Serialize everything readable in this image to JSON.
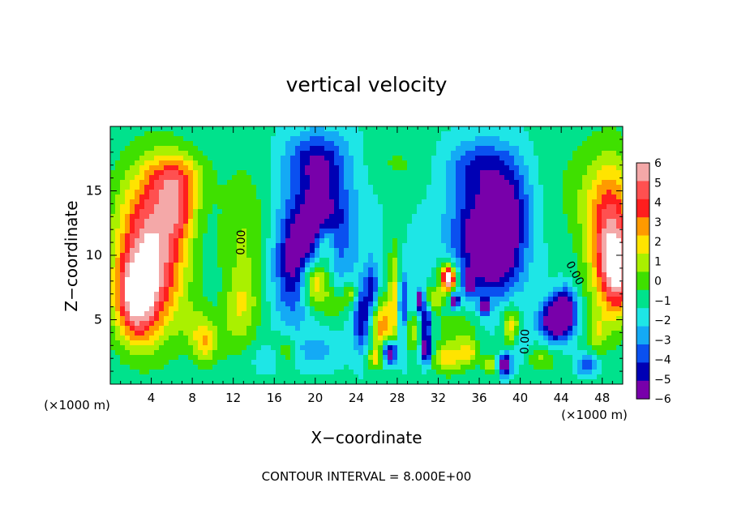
{
  "chart_data": {
    "type": "heatmap",
    "title": "vertical velocity",
    "xlabel": "X−coordinate",
    "ylabel": "Z−coordinate",
    "x_unit_left": "(×1000 m)",
    "x_unit_right": "(×1000 m)",
    "footer": "CONTOUR INTERVAL = 8.000E+00",
    "xlim": [
      0,
      50
    ],
    "ylim": [
      0,
      20
    ],
    "x_ticks": [
      4,
      8,
      12,
      16,
      20,
      24,
      28,
      32,
      36,
      40,
      44,
      48
    ],
    "x_tick_labels": [
      "4",
      "8",
      "12",
      "16",
      "20",
      "24",
      "28",
      "32",
      "36",
      "40",
      "44",
      "48"
    ],
    "y_ticks": [
      5,
      10,
      15
    ],
    "y_tick_labels": [
      "5",
      "10",
      "15"
    ],
    "colorbar": {
      "values": [
        6,
        5,
        4,
        3,
        2,
        1,
        0,
        -1,
        -2,
        -3,
        -4,
        -5,
        -6
      ],
      "labels": [
        "6",
        "5",
        "4",
        "3",
        "2",
        "1",
        "0",
        "−1",
        "−2",
        "−3",
        "−4",
        "−5",
        "−6"
      ],
      "colors": [
        "#f4a8a8",
        "#ff5050",
        "#ff1e1e",
        "#ff9a00",
        "#ffe400",
        "#aaf000",
        "#3fe000",
        "#00e28c",
        "#1ee6e6",
        "#14aaf5",
        "#0a50f0",
        "#0000b4",
        "#7800aa"
      ],
      "above_max_color": "#ffffff",
      "below_min_color": "#7800aa"
    },
    "contour_labels": [
      {
        "text": "0.00",
        "x": 12.8,
        "z": 11.0,
        "rotate": -88
      },
      {
        "text": "0.00",
        "x": 45.3,
        "z": 8.6,
        "rotate": 62
      },
      {
        "text": "0.00",
        "x": 40.5,
        "z": 3.3,
        "rotate": -88
      }
    ],
    "fields": [
      {
        "x": 25,
        "z": 10,
        "v": -1.5,
        "sx": 60,
        "sz": 30
      },
      {
        "x": 3.5,
        "z": 11,
        "v": 5.5,
        "sx": 3.2,
        "sz": 5.5
      },
      {
        "x": 6.5,
        "z": 15.8,
        "v": 4.5,
        "sx": 2.6,
        "sz": 2.2
      },
      {
        "x": 2.5,
        "z": 6.5,
        "v": 6.5,
        "sx": 2.0,
        "sz": 3.2
      },
      {
        "x": 5.2,
        "z": 9.5,
        "v": 3.0,
        "sx": 2.8,
        "sz": 6.0
      },
      {
        "x": 6.8,
        "z": 13.0,
        "v": 2.5,
        "sx": 1.5,
        "sz": 2.0
      },
      {
        "x": 48.8,
        "z": 11.5,
        "v": 6.5,
        "sx": 2.3,
        "sz": 5.5
      },
      {
        "x": 49.5,
        "z": 8.5,
        "v": 4.5,
        "sx": 1.5,
        "sz": 3.0
      },
      {
        "x": 45.5,
        "z": 15.0,
        "v": 1.0,
        "sx": 3.0,
        "sz": 4.0
      },
      {
        "x": 13,
        "z": 11,
        "v": 2.0,
        "sx": 2.5,
        "sz": 6.0
      },
      {
        "x": 12.8,
        "z": 6.0,
        "v": 2.0,
        "sx": 1.5,
        "sz": 2.5
      },
      {
        "x": 11,
        "z": 3.5,
        "v": 1.0,
        "sx": 2.5,
        "sz": 2.0
      },
      {
        "x": 8.5,
        "z": 4.5,
        "v": 1.5,
        "sx": 1.5,
        "sz": 1.8
      },
      {
        "x": 9.2,
        "z": 3.0,
        "v": 2.5,
        "sx": 1.0,
        "sz": 1.5
      },
      {
        "x": 20.5,
        "z": 12.5,
        "v": -5.0,
        "sx": 3.0,
        "sz": 5.0
      },
      {
        "x": 18.0,
        "z": 9.0,
        "v": -4.0,
        "sx": 2.0,
        "sz": 4.0
      },
      {
        "x": 20.0,
        "z": 8.0,
        "v": 6.5,
        "sx": 1.6,
        "sz": 2.2
      },
      {
        "x": 21.0,
        "z": 11.0,
        "v": 3.5,
        "sx": 1.0,
        "sz": 1.5
      },
      {
        "x": 22.0,
        "z": 6.0,
        "v": 2.0,
        "sx": 1.0,
        "sz": 1.2
      },
      {
        "x": 17.0,
        "z": 2.5,
        "v": 2.0,
        "sx": 1.2,
        "sz": 1.2
      },
      {
        "x": 15.5,
        "z": 2.0,
        "v": -1.5,
        "sx": 1.5,
        "sz": 1.0
      },
      {
        "x": 20.0,
        "z": 2.5,
        "v": -1.5,
        "sx": 2.0,
        "sz": 1.2
      },
      {
        "x": 23.5,
        "z": 7.0,
        "v": 3.0,
        "sx": 0.7,
        "sz": 1.0
      },
      {
        "x": 24.5,
        "z": 5.0,
        "v": -4.0,
        "sx": 0.8,
        "sz": 2.5
      },
      {
        "x": 25.5,
        "z": 7.5,
        "v": -3.5,
        "sx": 0.6,
        "sz": 2.0
      },
      {
        "x": 26.5,
        "z": 4.5,
        "v": 4.5,
        "sx": 1.0,
        "sz": 2.0
      },
      {
        "x": 27.8,
        "z": 7.0,
        "v": 3.5,
        "sx": 0.7,
        "sz": 4.0
      },
      {
        "x": 28.5,
        "z": 6.0,
        "v": -4.5,
        "sx": 0.5,
        "sz": 3.0
      },
      {
        "x": 27.3,
        "z": 2.5,
        "v": -6.5,
        "sx": 0.7,
        "sz": 0.9
      },
      {
        "x": 25.8,
        "z": 2.0,
        "v": 3.0,
        "sx": 0.7,
        "sz": 0.8
      },
      {
        "x": 29.5,
        "z": 4.0,
        "v": 2.5,
        "sx": 1.0,
        "sz": 1.5
      },
      {
        "x": 30.2,
        "z": 6.5,
        "v": -6.5,
        "sx": 0.4,
        "sz": 0.8
      },
      {
        "x": 30.8,
        "z": 5.0,
        "v": -5.0,
        "sx": 0.5,
        "sz": 1.2
      },
      {
        "x": 30.8,
        "z": 2.8,
        "v": -6.0,
        "sx": 0.5,
        "sz": 1.2
      },
      {
        "x": 31.5,
        "z": 6.5,
        "v": 3.0,
        "sx": 0.8,
        "sz": 1.0
      },
      {
        "x": 33.0,
        "z": 8.2,
        "v": 6.5,
        "sx": 0.5,
        "sz": 0.7
      },
      {
        "x": 33.0,
        "z": 8.2,
        "v": 5.0,
        "sx": 1.0,
        "sz": 1.4
      },
      {
        "x": 33.6,
        "z": 6.5,
        "v": -6.5,
        "sx": 0.4,
        "sz": 0.6
      },
      {
        "x": 33.0,
        "z": 2.0,
        "v": 3.5,
        "sx": 1.5,
        "sz": 1.2
      },
      {
        "x": 35.0,
        "z": 2.5,
        "v": 3.0,
        "sx": 1.0,
        "sz": 1.0
      },
      {
        "x": 34.0,
        "z": 4.5,
        "v": 2.0,
        "sx": 2.0,
        "sz": 1.5
      },
      {
        "x": 35.0,
        "z": 8.0,
        "v": -6.5,
        "sx": 0.5,
        "sz": 0.8
      },
      {
        "x": 36.5,
        "z": 6.0,
        "v": -6.5,
        "sx": 0.4,
        "sz": 0.6
      },
      {
        "x": 36.5,
        "z": 11.5,
        "v": -5.5,
        "sx": 3.2,
        "sz": 4.5
      },
      {
        "x": 39.0,
        "z": 13.5,
        "v": -3.0,
        "sx": 2.0,
        "sz": 4.0
      },
      {
        "x": 38.0,
        "z": 9.0,
        "v": -1.5,
        "sx": 2.0,
        "sz": 2.0
      },
      {
        "x": 38.5,
        "z": 1.5,
        "v": -6.5,
        "sx": 0.6,
        "sz": 0.8
      },
      {
        "x": 39.2,
        "z": 4.5,
        "v": 4.0,
        "sx": 0.9,
        "sz": 1.5
      },
      {
        "x": 40.0,
        "z": 3.5,
        "v": -1.5,
        "sx": 1.0,
        "sz": 2.0
      },
      {
        "x": 43.5,
        "z": 5.0,
        "v": -7.0,
        "sx": 1.5,
        "sz": 1.6
      },
      {
        "x": 44.5,
        "z": 6.0,
        "v": -4.0,
        "sx": 1.0,
        "sz": 1.5
      },
      {
        "x": 46.5,
        "z": 1.5,
        "v": -3.5,
        "sx": 1.0,
        "sz": 0.8
      },
      {
        "x": 47.5,
        "z": 4.0,
        "v": 2.0,
        "sx": 1.0,
        "sz": 1.5
      },
      {
        "x": 20.0,
        "z": 17.5,
        "v": -2.5,
        "sx": 3.0,
        "sz": 2.0
      },
      {
        "x": 36.0,
        "z": 17.0,
        "v": -2.5,
        "sx": 3.0,
        "sz": 2.0
      },
      {
        "x": 28.0,
        "z": 17.0,
        "v": 1.0,
        "sx": 3.0,
        "sz": 2.0
      },
      {
        "x": 42.0,
        "z": 2.0,
        "v": 2.0,
        "sx": 1.5,
        "sz": 1.0
      },
      {
        "x": 37.0,
        "z": 1.5,
        "v": 2.5,
        "sx": 0.8,
        "sz": 0.8
      }
    ]
  }
}
